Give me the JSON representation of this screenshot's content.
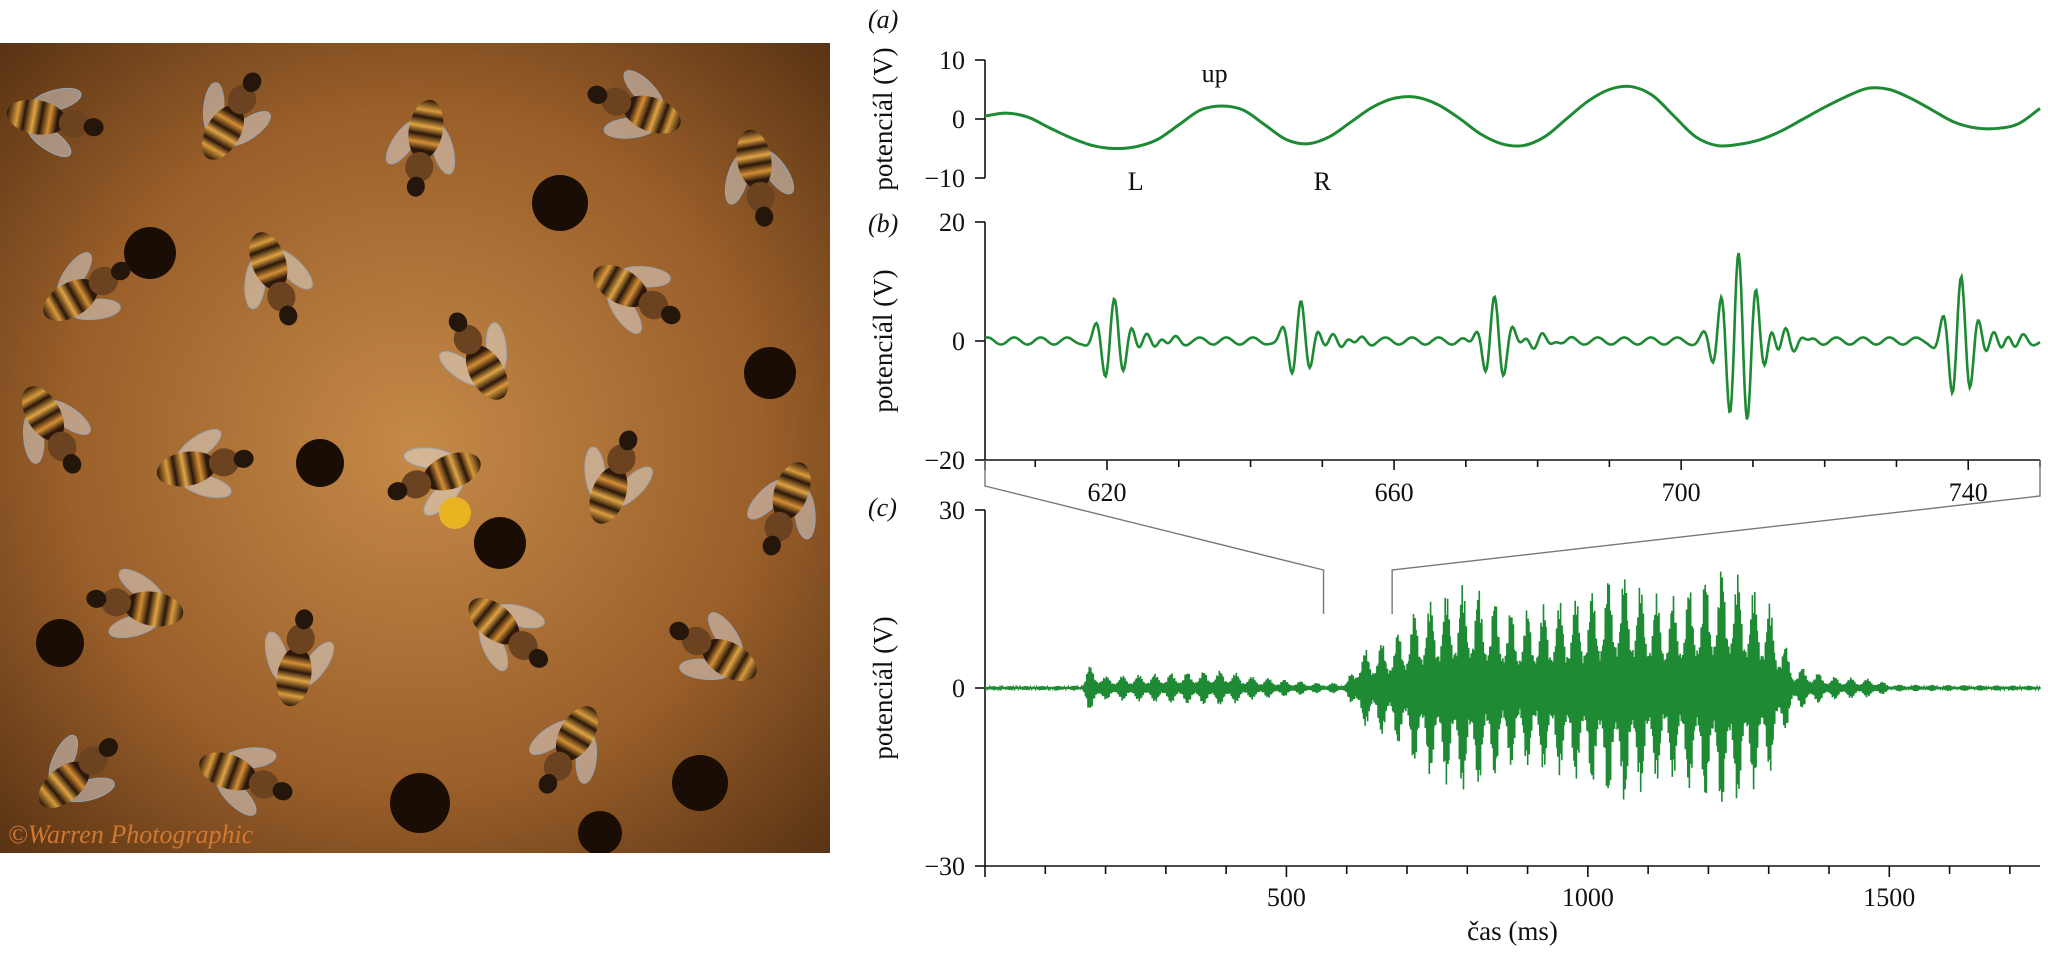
{
  "photo": {
    "credit": "©Warren Photographic"
  },
  "chart_data": [
    {
      "panel": "(a)",
      "type": "line",
      "ylabel": "potenciál (V)",
      "ylim": [
        -10,
        10
      ],
      "yticks": [
        10,
        0,
        -10
      ],
      "xlim": [
        603,
        750
      ],
      "annotations": [
        {
          "text": "up",
          "x": 635,
          "y": 6.3
        },
        {
          "text": "L",
          "x": 624,
          "y": -12
        },
        {
          "text": "R",
          "x": 650,
          "y": -12
        }
      ],
      "color": "#1e8a34",
      "series": [
        {
          "x": [
            603,
            606,
            609,
            612,
            615,
            618,
            621,
            624,
            627,
            630,
            633,
            636,
            639,
            642,
            645,
            648,
            651,
            654,
            657,
            660,
            663,
            666,
            669,
            672,
            675,
            678,
            681,
            684,
            687,
            690,
            693,
            696,
            699,
            702,
            705,
            708,
            711,
            714,
            717,
            720,
            723,
            726,
            729,
            732,
            735,
            738,
            741,
            744,
            747,
            750
          ],
          "y": [
            0.5,
            1.0,
            0.3,
            -1.5,
            -3.2,
            -4.5,
            -5.0,
            -4.7,
            -3.5,
            -1.0,
            1.5,
            2.2,
            1.5,
            -1.0,
            -3.5,
            -4.2,
            -3.0,
            -0.5,
            2.0,
            3.5,
            3.7,
            2.5,
            0.2,
            -2.5,
            -4.2,
            -4.5,
            -3.0,
            0.0,
            3.0,
            5.0,
            5.5,
            4.0,
            0.5,
            -3.0,
            -4.5,
            -4.3,
            -3.5,
            -2.0,
            0.0,
            2.0,
            3.8,
            5.2,
            5.0,
            3.5,
            1.5,
            -0.5,
            -1.5,
            -1.6,
            -0.8,
            1.8
          ]
        }
      ]
    },
    {
      "panel": "(b)",
      "type": "line",
      "ylabel": "potenciál (V)",
      "ylim": [
        -20,
        20
      ],
      "yticks": [
        20,
        0,
        -20
      ],
      "xlim": [
        603,
        750
      ],
      "xticks": [
        620,
        660,
        700,
        740
      ],
      "color": "#1e8a34",
      "bursts": [
        {
          "center": 621,
          "amplitude": 7,
          "period": 2.6,
          "width": 2.5
        },
        {
          "center": 647,
          "amplitude": 6.5,
          "period": 2.6,
          "width": 2.3
        },
        {
          "center": 674,
          "amplitude": 7,
          "period": 2.6,
          "width": 2.3
        },
        {
          "center": 708,
          "amplitude": 15,
          "period": 2.5,
          "width": 3.0
        },
        {
          "center": 739,
          "amplitude": 11,
          "period": 2.6,
          "width": 2.4
        }
      ]
    },
    {
      "panel": "(c)",
      "type": "line",
      "ylabel": "potenciál (V)",
      "xlabel": "čas (ms)",
      "ylim": [
        -30,
        30
      ],
      "yticks": [
        30,
        0,
        -30
      ],
      "xlim": [
        0,
        1750
      ],
      "xticks": [
        500,
        1000,
        1500
      ],
      "xminor": [
        100,
        200,
        300,
        400,
        600,
        700,
        800,
        900,
        1100,
        1200,
        1300,
        1400,
        1600,
        1700
      ],
      "zoom_range": [
        603,
        750
      ],
      "color": "#1e8a34",
      "envelope": [
        {
          "x": 0,
          "amp": 0.3
        },
        {
          "x": 160,
          "amp": 0.4
        },
        {
          "x": 170,
          "amp": 4
        },
        {
          "x": 200,
          "amp": 2
        },
        {
          "x": 400,
          "amp": 3
        },
        {
          "x": 440,
          "amp": 2
        },
        {
          "x": 560,
          "amp": 0.8
        },
        {
          "x": 600,
          "amp": 1
        },
        {
          "x": 620,
          "amp": 6
        },
        {
          "x": 680,
          "amp": 9
        },
        {
          "x": 720,
          "amp": 14
        },
        {
          "x": 800,
          "amp": 18
        },
        {
          "x": 880,
          "amp": 13
        },
        {
          "x": 960,
          "amp": 15
        },
        {
          "x": 1000,
          "amp": 16
        },
        {
          "x": 1050,
          "amp": 20
        },
        {
          "x": 1130,
          "amp": 15
        },
        {
          "x": 1230,
          "amp": 21
        },
        {
          "x": 1300,
          "amp": 15
        },
        {
          "x": 1340,
          "amp": 4
        },
        {
          "x": 1400,
          "amp": 2
        },
        {
          "x": 1480,
          "amp": 1.5
        },
        {
          "x": 1500,
          "amp": 0.6
        },
        {
          "x": 1750,
          "amp": 0.4
        }
      ]
    }
  ]
}
